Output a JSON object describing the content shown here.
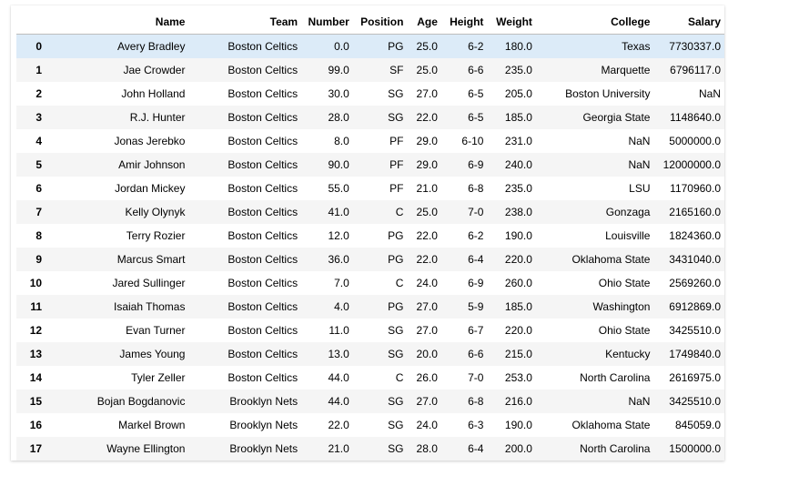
{
  "columns": [
    "",
    "Name",
    "Team",
    "Number",
    "Position",
    "Age",
    "Height",
    "Weight",
    "College",
    "Salary"
  ],
  "rows": [
    {
      "index": "0",
      "name": "Avery Bradley",
      "team": "Boston Celtics",
      "number": "0.0",
      "position": "PG",
      "age": "25.0",
      "height": "6-2",
      "weight": "180.0",
      "college": "Texas",
      "salary": "7730337.0"
    },
    {
      "index": "1",
      "name": "Jae Crowder",
      "team": "Boston Celtics",
      "number": "99.0",
      "position": "SF",
      "age": "25.0",
      "height": "6-6",
      "weight": "235.0",
      "college": "Marquette",
      "salary": "6796117.0"
    },
    {
      "index": "2",
      "name": "John Holland",
      "team": "Boston Celtics",
      "number": "30.0",
      "position": "SG",
      "age": "27.0",
      "height": "6-5",
      "weight": "205.0",
      "college": "Boston University",
      "salary": "NaN"
    },
    {
      "index": "3",
      "name": "R.J. Hunter",
      "team": "Boston Celtics",
      "number": "28.0",
      "position": "SG",
      "age": "22.0",
      "height": "6-5",
      "weight": "185.0",
      "college": "Georgia State",
      "salary": "1148640.0"
    },
    {
      "index": "4",
      "name": "Jonas Jerebko",
      "team": "Boston Celtics",
      "number": "8.0",
      "position": "PF",
      "age": "29.0",
      "height": "6-10",
      "weight": "231.0",
      "college": "NaN",
      "salary": "5000000.0"
    },
    {
      "index": "5",
      "name": "Amir Johnson",
      "team": "Boston Celtics",
      "number": "90.0",
      "position": "PF",
      "age": "29.0",
      "height": "6-9",
      "weight": "240.0",
      "college": "NaN",
      "salary": "12000000.0"
    },
    {
      "index": "6",
      "name": "Jordan Mickey",
      "team": "Boston Celtics",
      "number": "55.0",
      "position": "PF",
      "age": "21.0",
      "height": "6-8",
      "weight": "235.0",
      "college": "LSU",
      "salary": "1170960.0"
    },
    {
      "index": "7",
      "name": "Kelly Olynyk",
      "team": "Boston Celtics",
      "number": "41.0",
      "position": "C",
      "age": "25.0",
      "height": "7-0",
      "weight": "238.0",
      "college": "Gonzaga",
      "salary": "2165160.0"
    },
    {
      "index": "8",
      "name": "Terry Rozier",
      "team": "Boston Celtics",
      "number": "12.0",
      "position": "PG",
      "age": "22.0",
      "height": "6-2",
      "weight": "190.0",
      "college": "Louisville",
      "salary": "1824360.0"
    },
    {
      "index": "9",
      "name": "Marcus Smart",
      "team": "Boston Celtics",
      "number": "36.0",
      "position": "PG",
      "age": "22.0",
      "height": "6-4",
      "weight": "220.0",
      "college": "Oklahoma State",
      "salary": "3431040.0"
    },
    {
      "index": "10",
      "name": "Jared Sullinger",
      "team": "Boston Celtics",
      "number": "7.0",
      "position": "C",
      "age": "24.0",
      "height": "6-9",
      "weight": "260.0",
      "college": "Ohio State",
      "salary": "2569260.0"
    },
    {
      "index": "11",
      "name": "Isaiah Thomas",
      "team": "Boston Celtics",
      "number": "4.0",
      "position": "PG",
      "age": "27.0",
      "height": "5-9",
      "weight": "185.0",
      "college": "Washington",
      "salary": "6912869.0"
    },
    {
      "index": "12",
      "name": "Evan Turner",
      "team": "Boston Celtics",
      "number": "11.0",
      "position": "SG",
      "age": "27.0",
      "height": "6-7",
      "weight": "220.0",
      "college": "Ohio State",
      "salary": "3425510.0"
    },
    {
      "index": "13",
      "name": "James Young",
      "team": "Boston Celtics",
      "number": "13.0",
      "position": "SG",
      "age": "20.0",
      "height": "6-6",
      "weight": "215.0",
      "college": "Kentucky",
      "salary": "1749840.0"
    },
    {
      "index": "14",
      "name": "Tyler Zeller",
      "team": "Boston Celtics",
      "number": "44.0",
      "position": "C",
      "age": "26.0",
      "height": "7-0",
      "weight": "253.0",
      "college": "North Carolina",
      "salary": "2616975.0"
    },
    {
      "index": "15",
      "name": "Bojan Bogdanovic",
      "team": "Brooklyn Nets",
      "number": "44.0",
      "position": "SG",
      "age": "27.0",
      "height": "6-8",
      "weight": "216.0",
      "college": "NaN",
      "salary": "3425510.0"
    },
    {
      "index": "16",
      "name": "Markel Brown",
      "team": "Brooklyn Nets",
      "number": "22.0",
      "position": "SG",
      "age": "24.0",
      "height": "6-3",
      "weight": "190.0",
      "college": "Oklahoma State",
      "salary": "845059.0"
    },
    {
      "index": "17",
      "name": "Wayne Ellington",
      "team": "Brooklyn Nets",
      "number": "21.0",
      "position": "SG",
      "age": "28.0",
      "height": "6-4",
      "weight": "200.0",
      "college": "North Carolina",
      "salary": "1500000.0"
    }
  ],
  "highlight_row": 0,
  "colors": {
    "highlight": "#dcebf8",
    "stripe": "#f5f5f5"
  }
}
